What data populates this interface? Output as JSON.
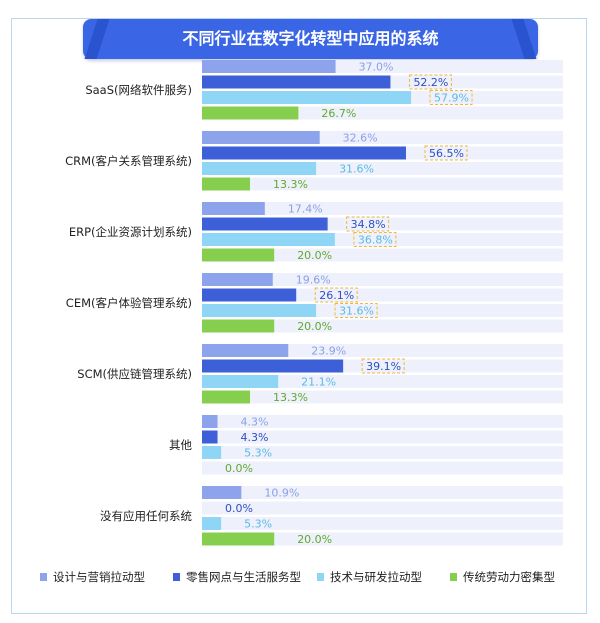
{
  "chart_data": {
    "type": "bar",
    "orientation": "horizontal",
    "title": "不同行业在数字化转型中应用的系统",
    "categories": [
      "SaaS(网络软件服务)",
      "CRM(客户关系管理系统)",
      "ERP(企业资源计划系统)",
      "CEM(客户体验管理系统)",
      "SCM(供应链管理系统)",
      "其他",
      "没有应用任何系统"
    ],
    "series": [
      {
        "name": "设计与营销拉动型",
        "color": "#8da4ec",
        "values": [
          37.0,
          32.6,
          17.4,
          19.6,
          23.9,
          4.3,
          10.9
        ],
        "value_labels": [
          "37.0%",
          "32.6%",
          "17.4%",
          "19.6%",
          "23.9%",
          "4.3%",
          "10.9%"
        ],
        "label_color": "#8aa0e8"
      },
      {
        "name": "零售网点与生活服务型",
        "color": "#3d60d8",
        "values": [
          52.2,
          56.5,
          34.8,
          26.1,
          39.1,
          4.3,
          0.0
        ],
        "value_labels": [
          "52.2%",
          "56.5%",
          "34.8%",
          "26.1%",
          "39.1%",
          "4.3%",
          "0.0%"
        ],
        "label_color": "#2f4fc4"
      },
      {
        "name": "技术与研发拉动型",
        "color": "#8fd5f6",
        "values": [
          57.9,
          31.6,
          36.8,
          31.6,
          21.1,
          5.3,
          5.3
        ],
        "value_labels": [
          "57.9%",
          "31.6%",
          "36.8%",
          "31.6%",
          "21.1%",
          "5.3%",
          "5.3%"
        ],
        "label_color": "#5ab9e8"
      },
      {
        "name": "传统劳动力密集型",
        "color": "#86cf4e",
        "values": [
          26.7,
          13.3,
          20.0,
          20.0,
          13.3,
          0.0,
          20.0
        ],
        "value_labels": [
          "26.7%",
          "13.3%",
          "20.0%",
          "20.0%",
          "13.3%",
          "0.0%",
          "20.0%"
        ],
        "label_color": "#5fa92e"
      }
    ],
    "highlighted": [
      {
        "category": 0,
        "series": 1
      },
      {
        "category": 0,
        "series": 2
      },
      {
        "category": 1,
        "series": 1
      },
      {
        "category": 2,
        "series": 1
      },
      {
        "category": 2,
        "series": 2
      },
      {
        "category": 3,
        "series": 1
      },
      {
        "category": 3,
        "series": 2
      },
      {
        "category": 4,
        "series": 1
      }
    ],
    "highlight_color": "#f0b73a",
    "xlim": [
      0,
      100
    ],
    "legend_position": "bottom",
    "grid": false
  }
}
